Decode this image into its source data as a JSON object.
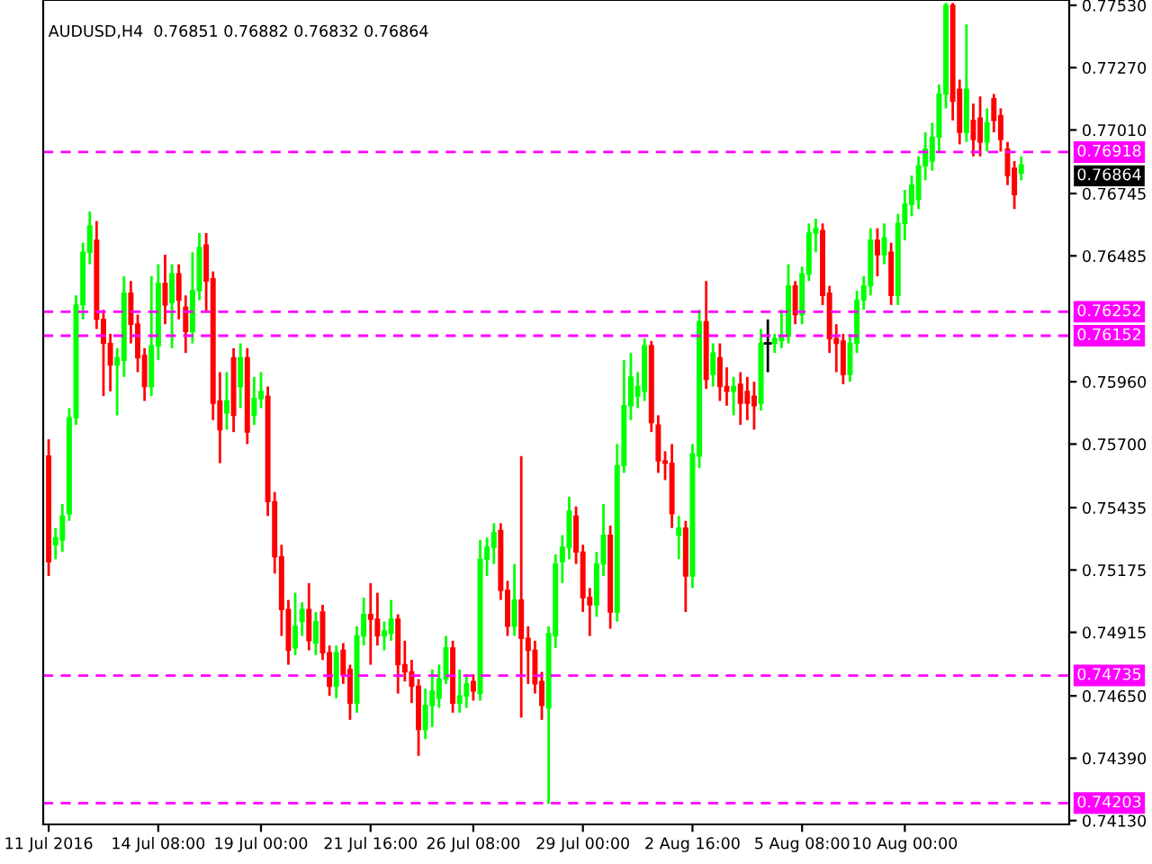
{
  "chart_data": {
    "type": "candlestick",
    "title": "AUDUSD,H4  0.76851 0.76882 0.76832 0.76864",
    "categories": [
      "11 Jul 2016",
      null,
      null,
      null,
      null,
      null,
      null,
      null,
      null,
      null,
      null,
      null,
      null,
      null,
      null,
      null,
      "14 Jul 08:00",
      null,
      null,
      null,
      null,
      null,
      null,
      null,
      null,
      null,
      null,
      null,
      null,
      null,
      null,
      "19 Jul 00:00",
      null,
      null,
      null,
      null,
      null,
      null,
      null,
      null,
      null,
      null,
      null,
      null,
      null,
      null,
      null,
      "21 Jul 16:00",
      null,
      null,
      null,
      null,
      null,
      null,
      null,
      null,
      null,
      null,
      null,
      null,
      null,
      null,
      "26 Jul 08:00",
      null,
      null,
      null,
      null,
      null,
      null,
      null,
      null,
      null,
      null,
      null,
      null,
      null,
      null,
      null,
      "29 Jul 00:00",
      null,
      null,
      null,
      null,
      null,
      null,
      null,
      null,
      null,
      null,
      null,
      null,
      null,
      null,
      null,
      "2 Aug 16:00",
      null,
      null,
      null,
      null,
      null,
      null,
      null,
      null,
      null,
      null,
      null,
      null,
      null,
      null,
      null,
      "5 Aug 08:00",
      null,
      null,
      null,
      null,
      null,
      null,
      null,
      null,
      null,
      null,
      null,
      null,
      null,
      null,
      "10 Aug 00:00",
      null,
      null,
      null,
      null,
      null,
      null,
      null,
      null,
      null,
      null,
      null,
      null,
      null,
      null,
      null,
      null,
      null
    ],
    "ohlc": [
      [
        0.7565,
        0.7572,
        0.7515,
        0.7521
      ],
      [
        0.7528,
        0.7535,
        0.7522,
        0.7531
      ],
      [
        0.753,
        0.7545,
        0.7525,
        0.754
      ],
      [
        0.7541,
        0.7585,
        0.7538,
        0.7581
      ],
      [
        0.7581,
        0.7632,
        0.7578,
        0.7628
      ],
      [
        0.7628,
        0.7654,
        0.7622,
        0.765
      ],
      [
        0.765,
        0.7667,
        0.7645,
        0.7661
      ],
      [
        0.7655,
        0.7663,
        0.7618,
        0.7622
      ],
      [
        0.7622,
        0.7626,
        0.759,
        0.7612
      ],
      [
        0.7612,
        0.7616,
        0.7592,
        0.7603
      ],
      [
        0.7603,
        0.761,
        0.7582,
        0.7606
      ],
      [
        0.7605,
        0.764,
        0.7598,
        0.7633
      ],
      [
        0.7633,
        0.7638,
        0.7612,
        0.762
      ],
      [
        0.762,
        0.7624,
        0.76,
        0.7606
      ],
      [
        0.7607,
        0.761,
        0.7588,
        0.7594
      ],
      [
        0.7594,
        0.764,
        0.759,
        0.7611
      ],
      [
        0.7611,
        0.7645,
        0.7605,
        0.7637
      ],
      [
        0.7637,
        0.7649,
        0.762,
        0.7628
      ],
      [
        0.7629,
        0.7645,
        0.761,
        0.7641
      ],
      [
        0.7641,
        0.7645,
        0.7622,
        0.763
      ],
      [
        0.7627,
        0.7632,
        0.7608,
        0.7617
      ],
      [
        0.7617,
        0.765,
        0.7612,
        0.7634
      ],
      [
        0.7634,
        0.7658,
        0.763,
        0.7652
      ],
      [
        0.7653,
        0.7658,
        0.7625,
        0.7638
      ],
      [
        0.7639,
        0.7642,
        0.758,
        0.7587
      ],
      [
        0.7588,
        0.76,
        0.7562,
        0.7576
      ],
      [
        0.7583,
        0.76,
        0.7576,
        0.7588
      ],
      [
        0.7606,
        0.761,
        0.7575,
        0.7582
      ],
      [
        0.7594,
        0.7612,
        0.7585,
        0.7606
      ],
      [
        0.7606,
        0.761,
        0.757,
        0.7575
      ],
      [
        0.7582,
        0.7598,
        0.7578,
        0.7589
      ],
      [
        0.7589,
        0.76,
        0.7585,
        0.7592
      ],
      [
        0.759,
        0.7594,
        0.754,
        0.7546
      ],
      [
        0.7546,
        0.755,
        0.7516,
        0.7523
      ],
      [
        0.7523,
        0.7528,
        0.749,
        0.7501
      ],
      [
        0.7501,
        0.7505,
        0.7478,
        0.7484
      ],
      [
        0.7485,
        0.7508,
        0.7482,
        0.7494
      ],
      [
        0.7496,
        0.7504,
        0.749,
        0.7501
      ],
      [
        0.7501,
        0.7512,
        0.7484,
        0.7488
      ],
      [
        0.7487,
        0.75,
        0.7482,
        0.7496
      ],
      [
        0.75,
        0.7503,
        0.748,
        0.7483
      ],
      [
        0.7483,
        0.7486,
        0.7465,
        0.7469
      ],
      [
        0.7469,
        0.7486,
        0.7464,
        0.7483
      ],
      [
        0.7484,
        0.7487,
        0.747,
        0.7474
      ],
      [
        0.7476,
        0.7478,
        0.7455,
        0.7462
      ],
      [
        0.7462,
        0.7494,
        0.7458,
        0.749
      ],
      [
        0.749,
        0.7506,
        0.7486,
        0.7499
      ],
      [
        0.7499,
        0.7512,
        0.7478,
        0.7497
      ],
      [
        0.7497,
        0.7508,
        0.7486,
        0.749
      ],
      [
        0.749,
        0.7496,
        0.7484,
        0.7492
      ],
      [
        0.7491,
        0.7505,
        0.7488,
        0.7497
      ],
      [
        0.7497,
        0.7499,
        0.7466,
        0.7478
      ],
      [
        0.7478,
        0.7488,
        0.7471,
        0.7475
      ],
      [
        0.7475,
        0.748,
        0.7462,
        0.7469
      ],
      [
        0.7469,
        0.7472,
        0.744,
        0.7451
      ],
      [
        0.7451,
        0.7468,
        0.7447,
        0.7461
      ],
      [
        0.7461,
        0.7476,
        0.7452,
        0.7467
      ],
      [
        0.7464,
        0.7478,
        0.746,
        0.7472
      ],
      [
        0.7472,
        0.749,
        0.747,
        0.7485
      ],
      [
        0.7485,
        0.7488,
        0.7458,
        0.7462
      ],
      [
        0.7462,
        0.7476,
        0.7458,
        0.7465
      ],
      [
        0.7465,
        0.7474,
        0.746,
        0.747
      ],
      [
        0.7471,
        0.7474,
        0.7463,
        0.7467
      ],
      [
        0.7466,
        0.753,
        0.7463,
        0.7522
      ],
      [
        0.7522,
        0.7531,
        0.7515,
        0.7527
      ],
      [
        0.7527,
        0.7537,
        0.752,
        0.7533
      ],
      [
        0.7534,
        0.7537,
        0.7505,
        0.7509
      ],
      [
        0.7509,
        0.7513,
        0.749,
        0.7494
      ],
      [
        0.7494,
        0.752,
        0.749,
        0.7505
      ],
      [
        0.7505,
        0.7565,
        0.7456,
        0.7489
      ],
      [
        0.7489,
        0.7494,
        0.747,
        0.7484
      ],
      [
        0.7484,
        0.7488,
        0.7466,
        0.747
      ],
      [
        0.7471,
        0.7475,
        0.7455,
        0.7461
      ],
      [
        0.746,
        0.7494,
        0.742,
        0.7491
      ],
      [
        0.749,
        0.7524,
        0.7485,
        0.752
      ],
      [
        0.7521,
        0.7532,
        0.7512,
        0.7527
      ],
      [
        0.7527,
        0.7548,
        0.7522,
        0.7542
      ],
      [
        0.754,
        0.7544,
        0.752,
        0.7525
      ],
      [
        0.7525,
        0.7528,
        0.75,
        0.7506
      ],
      [
        0.7506,
        0.751,
        0.749,
        0.7503
      ],
      [
        0.7503,
        0.7525,
        0.7498,
        0.752
      ],
      [
        0.752,
        0.7545,
        0.7515,
        0.7532
      ],
      [
        0.7532,
        0.7536,
        0.7493,
        0.75
      ],
      [
        0.75,
        0.757,
        0.7496,
        0.7561
      ],
      [
        0.7561,
        0.7605,
        0.7558,
        0.7586
      ],
      [
        0.7586,
        0.7608,
        0.758,
        0.7598
      ],
      [
        0.759,
        0.76,
        0.7585,
        0.7594
      ],
      [
        0.7592,
        0.7614,
        0.7588,
        0.7611
      ],
      [
        0.7611,
        0.7613,
        0.7575,
        0.7579
      ],
      [
        0.7578,
        0.7582,
        0.7558,
        0.7563
      ],
      [
        0.7563,
        0.7567,
        0.7555,
        0.7562
      ],
      [
        0.7562,
        0.757,
        0.7535,
        0.7541
      ],
      [
        0.7532,
        0.754,
        0.7522,
        0.7535
      ],
      [
        0.7535,
        0.7538,
        0.75,
        0.7515
      ],
      [
        0.7515,
        0.757,
        0.751,
        0.7566
      ],
      [
        0.7565,
        0.7626,
        0.756,
        0.7621
      ],
      [
        0.7621,
        0.7638,
        0.7593,
        0.7597
      ],
      [
        0.7599,
        0.7612,
        0.7594,
        0.7608
      ],
      [
        0.7606,
        0.7612,
        0.7588,
        0.7594
      ],
      [
        0.7594,
        0.7602,
        0.7586,
        0.7592
      ],
      [
        0.7592,
        0.7598,
        0.7582,
        0.7594
      ],
      [
        0.7595,
        0.76,
        0.7578,
        0.7587
      ],
      [
        0.7592,
        0.7598,
        0.758,
        0.7587
      ],
      [
        0.759,
        0.7596,
        0.7576,
        0.7586
      ],
      [
        0.7587,
        0.7618,
        0.7584,
        0.7612
      ],
      [
        0.7612,
        0.7622,
        0.76,
        0.7612
      ],
      [
        0.7612,
        0.7616,
        0.7608,
        0.7614
      ],
      [
        0.7613,
        0.7626,
        0.761,
        0.7615
      ],
      [
        0.7615,
        0.7645,
        0.7612,
        0.7636
      ],
      [
        0.7636,
        0.7638,
        0.762,
        0.7624
      ],
      [
        0.7624,
        0.7644,
        0.762,
        0.7641
      ],
      [
        0.7641,
        0.7662,
        0.7638,
        0.7658
      ],
      [
        0.7658,
        0.7664,
        0.765,
        0.766
      ],
      [
        0.7659,
        0.7662,
        0.7628,
        0.7632
      ],
      [
        0.7633,
        0.7636,
        0.7608,
        0.7614
      ],
      [
        0.7614,
        0.762,
        0.76,
        0.7612
      ],
      [
        0.7613,
        0.7616,
        0.7595,
        0.7599
      ],
      [
        0.7599,
        0.7616,
        0.7596,
        0.7612
      ],
      [
        0.7612,
        0.7634,
        0.7608,
        0.763
      ],
      [
        0.763,
        0.764,
        0.7626,
        0.7636
      ],
      [
        0.7636,
        0.766,
        0.7632,
        0.7655
      ],
      [
        0.7655,
        0.766,
        0.764,
        0.7649
      ],
      [
        0.7649,
        0.7662,
        0.7645,
        0.7656
      ],
      [
        0.765,
        0.7654,
        0.7628,
        0.7632
      ],
      [
        0.7632,
        0.7666,
        0.7628,
        0.7662
      ],
      [
        0.7662,
        0.7676,
        0.7655,
        0.767
      ],
      [
        0.767,
        0.7682,
        0.7665,
        0.7678
      ],
      [
        0.7672,
        0.769,
        0.7668,
        0.7686
      ],
      [
        0.7686,
        0.77,
        0.768,
        0.7693
      ],
      [
        0.7688,
        0.7704,
        0.7684,
        0.7698
      ],
      [
        0.7698,
        0.772,
        0.7692,
        0.7716
      ],
      [
        0.7716,
        0.7754,
        0.771,
        0.7753
      ],
      [
        0.7753,
        0.7754,
        0.7705,
        0.7713
      ],
      [
        0.7718,
        0.7722,
        0.7695,
        0.77
      ],
      [
        0.77,
        0.7745,
        0.7696,
        0.7718
      ],
      [
        0.7705,
        0.7712,
        0.769,
        0.7697
      ],
      [
        0.7706,
        0.7715,
        0.769,
        0.7696
      ],
      [
        0.7696,
        0.771,
        0.7692,
        0.7704
      ],
      [
        0.7714,
        0.7716,
        0.77,
        0.7705
      ],
      [
        0.7707,
        0.771,
        0.7692,
        0.7697
      ],
      [
        0.7693,
        0.7696,
        0.7678,
        0.7682
      ],
      [
        0.7685,
        0.7688,
        0.7668,
        0.7674
      ],
      [
        0.7683,
        0.769,
        0.768,
        0.76864
      ]
    ],
    "ylim": [
      0.74114,
      0.77552
    ],
    "yticks": [
      {
        "value": 0.7413,
        "label": "0.74130"
      },
      {
        "value": 0.7439,
        "label": "0.74390"
      },
      {
        "value": 0.7465,
        "label": "0.74650"
      },
      {
        "value": 0.74915,
        "label": "0.74915"
      },
      {
        "value": 0.75175,
        "label": "0.75175"
      },
      {
        "value": 0.75435,
        "label": "0.75435"
      },
      {
        "value": 0.757,
        "label": "0.75700"
      },
      {
        "value": 0.7596,
        "label": "0.75960"
      },
      {
        "value": 0.76485,
        "label": "0.76485"
      },
      {
        "value": 0.76745,
        "label": "0.76745"
      },
      {
        "value": 0.7701,
        "label": "0.77010"
      },
      {
        "value": 0.7727,
        "label": "0.77270"
      },
      {
        "value": 0.7753,
        "label": "0.77530"
      }
    ],
    "ref_lines": [
      {
        "axis": "y",
        "value": 0.76918,
        "label": "0.76918",
        "color": "#ff00ff",
        "line_style": "dashed"
      },
      {
        "axis": "y",
        "value": 0.76252,
        "label": "0.76252",
        "color": "#ff00ff",
        "line_style": "dashed"
      },
      {
        "axis": "y",
        "value": 0.76152,
        "label": "0.76152",
        "color": "#ff00ff",
        "line_style": "dashed"
      },
      {
        "axis": "y",
        "value": 0.74735,
        "label": "0.74735",
        "color": "#ff00ff",
        "line_style": "dashed"
      },
      {
        "axis": "y",
        "value": 0.74203,
        "label": "0.74203",
        "color": "#ff00ff",
        "line_style": "dashed"
      }
    ],
    "annotations": [
      "0.76864"
    ],
    "grid": false,
    "legend": false
  }
}
